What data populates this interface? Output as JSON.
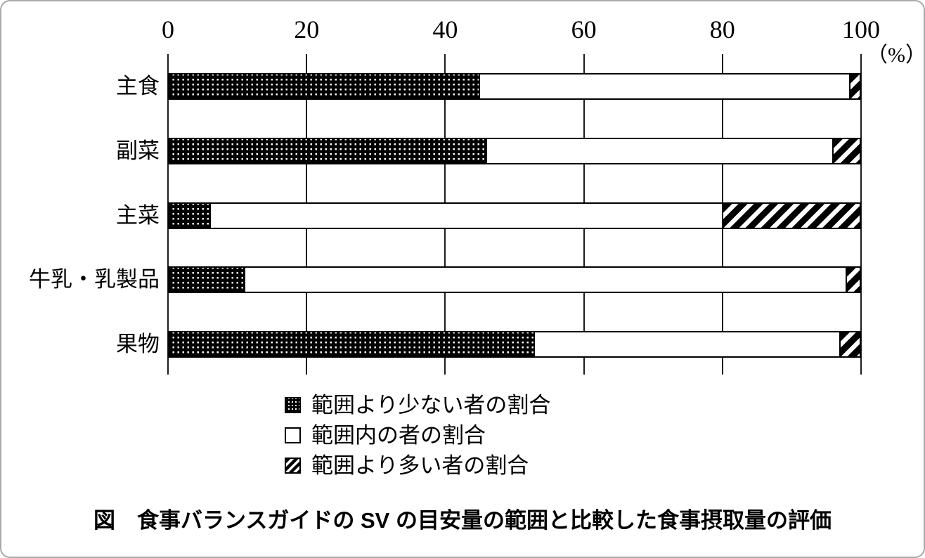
{
  "chart_data": {
    "type": "bar",
    "orientation": "horizontal",
    "stacked": true,
    "title": "図　食事バランスガイドの SV の目安量の範囲と比較した食事摂取量の評価",
    "categories": [
      "主食",
      "副菜",
      "主菜",
      "牛乳・乳製品",
      "果物"
    ],
    "series": [
      {
        "name": "範囲より少ない者の割合",
        "pattern": "dotted-grid-black",
        "values": [
          45,
          46,
          6,
          11,
          53
        ]
      },
      {
        "name": "範囲内の者の割合",
        "pattern": "plain-white",
        "values": [
          53.5,
          50,
          74,
          87,
          44
        ]
      },
      {
        "name": "範囲より多い者の割合",
        "pattern": "diagonal-hatch",
        "values": [
          1.5,
          4,
          20,
          2,
          3
        ]
      }
    ],
    "x_ticks": [
      "0",
      "20",
      "40",
      "60",
      "80",
      "100"
    ],
    "x_axis_unit_label": "（%）",
    "xlim": [
      0,
      100
    ],
    "grid": "vertical-only",
    "legend_position": "bottom"
  },
  "colors": {
    "foreground": "#000000",
    "background": "#ffffff",
    "frame_border": "#a9a9a9"
  }
}
